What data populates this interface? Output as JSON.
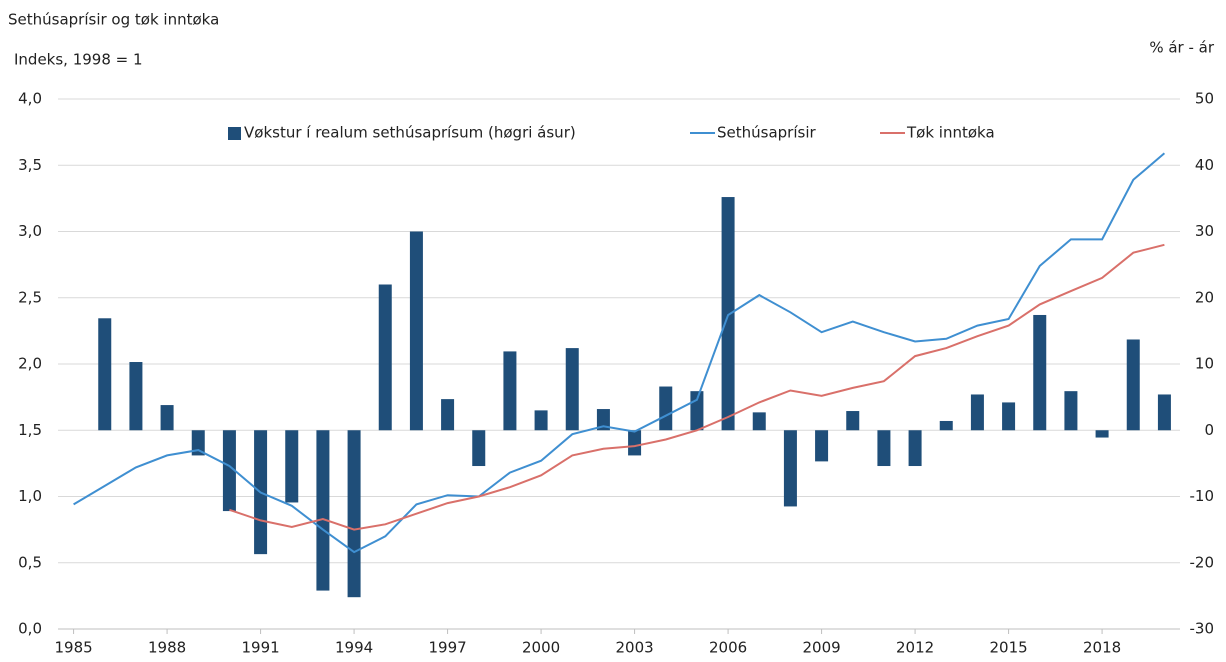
{
  "chart_data": {
    "type": "bar_line",
    "title": "Sethúsaprísir og tøk inntøka",
    "y_label": "Indeks, 1998 = 1",
    "y2_label": "% ár - ár",
    "x": [
      1985,
      1986,
      1987,
      1988,
      1989,
      1990,
      1991,
      1992,
      1993,
      1994,
      1995,
      1996,
      1997,
      1998,
      1999,
      2000,
      2001,
      2002,
      2003,
      2004,
      2005,
      2006,
      2007,
      2008,
      2009,
      2010,
      2011,
      2012,
      2013,
      2014,
      2015,
      2016,
      2017,
      2018,
      2019,
      2020
    ],
    "xlim": [
      1984.5,
      2020.5
    ],
    "xticks": [
      1985,
      1988,
      1991,
      1994,
      1997,
      2000,
      2003,
      2006,
      2009,
      2012,
      2015,
      2018
    ],
    "ylim": [
      0,
      4
    ],
    "yticks": [
      {
        "value": 0,
        "label": "0,0"
      },
      {
        "value": 0.5,
        "label": "0,5"
      },
      {
        "value": 1,
        "label": "1,0"
      },
      {
        "value": 1.5,
        "label": "1,5"
      },
      {
        "value": 2,
        "label": "2,0"
      },
      {
        "value": 2.5,
        "label": "2,5"
      },
      {
        "value": 3,
        "label": "3,0"
      },
      {
        "value": 3.5,
        "label": "3,5"
      },
      {
        "value": 4,
        "label": "4,0"
      }
    ],
    "y2lim": [
      -30,
      50
    ],
    "y2ticks": [
      -30,
      -20,
      -10,
      0,
      10,
      20,
      30,
      40,
      50
    ],
    "grid": true,
    "legend": "top",
    "series": [
      {
        "name": "Vøkstur í realum sethúsaprísum (høgri ásur)",
        "type": "bar",
        "axis": "y2",
        "color": "#1f4e79",
        "values": [
          null,
          16.9,
          10.3,
          3.8,
          -3.8,
          -12.2,
          -18.7,
          -10.9,
          -24.2,
          -25.2,
          22.0,
          30.0,
          4.7,
          -5.4,
          11.9,
          3.0,
          12.4,
          3.2,
          -3.8,
          6.6,
          5.9,
          35.2,
          2.7,
          -11.5,
          -4.7,
          2.9,
          -5.4,
          -5.4,
          1.4,
          5.4,
          4.2,
          17.4,
          5.9,
          -1.1,
          13.7,
          5.4
        ]
      },
      {
        "name": "Sethúsaprísir",
        "type": "line",
        "color": "#3f8fd1",
        "values": [
          0.94,
          1.08,
          1.22,
          1.31,
          1.35,
          1.23,
          1.03,
          0.93,
          0.75,
          0.58,
          0.7,
          0.94,
          1.01,
          1.0,
          1.18,
          1.27,
          1.47,
          1.53,
          1.49,
          1.61,
          1.73,
          2.37,
          2.52,
          2.39,
          2.24,
          2.32,
          2.24,
          2.17,
          2.19,
          2.29,
          2.34,
          2.74,
          2.94,
          2.94,
          3.39,
          3.59
        ]
      },
      {
        "name": "Tøk inntøka",
        "type": "line",
        "color": "#d9706a",
        "values": [
          null,
          null,
          null,
          null,
          null,
          0.9,
          0.82,
          0.77,
          0.83,
          0.75,
          0.79,
          0.87,
          0.95,
          1.0,
          1.07,
          1.16,
          1.31,
          1.36,
          1.38,
          1.43,
          1.5,
          1.6,
          1.71,
          1.8,
          1.76,
          1.82,
          1.87,
          2.06,
          2.12,
          2.21,
          2.29,
          2.45,
          2.55,
          2.65,
          2.84,
          2.9
        ]
      }
    ]
  }
}
